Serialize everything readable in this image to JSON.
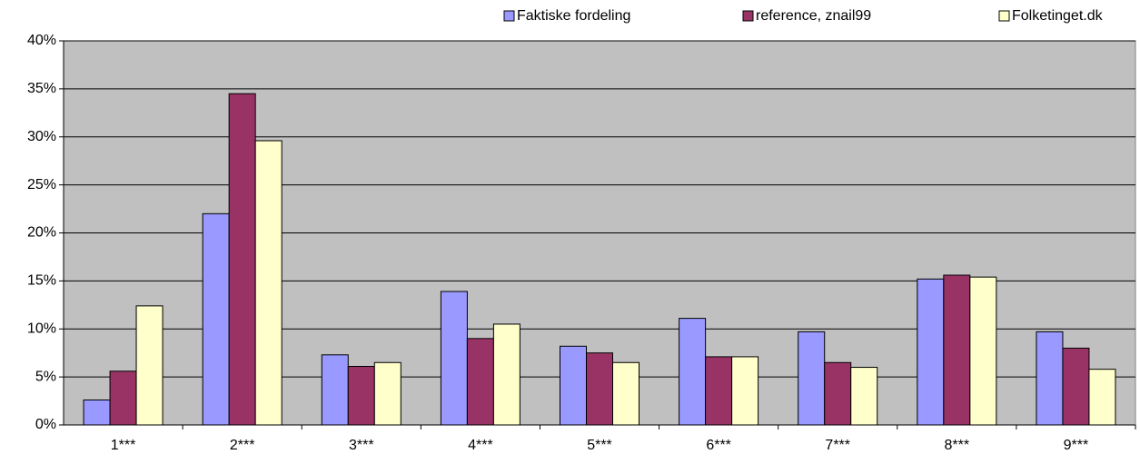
{
  "chart_data": {
    "type": "bar",
    "categories": [
      "1***",
      "2***",
      "3***",
      "4***",
      "5***",
      "6***",
      "7***",
      "8***",
      "9***"
    ],
    "series": [
      {
        "name": "Faktiske fordeling",
        "color": "#9999ff",
        "values": [
          2.6,
          22.0,
          7.3,
          13.9,
          8.2,
          11.1,
          9.7,
          15.2,
          9.7
        ]
      },
      {
        "name": "reference, znail99",
        "color": "#993366",
        "values": [
          5.6,
          34.5,
          6.1,
          9.0,
          7.5,
          7.1,
          6.5,
          15.6,
          8.0
        ]
      },
      {
        "name": "Folketinget.dk",
        "color": "#ffffcc",
        "values": [
          12.4,
          29.6,
          6.5,
          10.5,
          6.5,
          7.1,
          6.0,
          15.4,
          5.8
        ]
      }
    ],
    "ylim": [
      0,
      40
    ],
    "yticks": [
      {
        "value": 0,
        "label": "0%"
      },
      {
        "value": 5,
        "label": "5%"
      },
      {
        "value": 10,
        "label": "10%"
      },
      {
        "value": 15,
        "label": "15%"
      },
      {
        "value": 20,
        "label": "20%"
      },
      {
        "value": 25,
        "label": "25%"
      },
      {
        "value": 30,
        "label": "30%"
      },
      {
        "value": 35,
        "label": "35%"
      },
      {
        "value": 40,
        "label": "40%"
      }
    ],
    "grid": true,
    "legend": "top-right",
    "background": "#c0c0c0"
  }
}
